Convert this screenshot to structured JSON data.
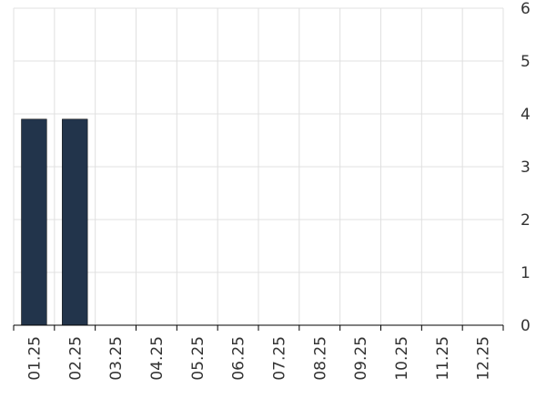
{
  "chart_data": {
    "type": "bar",
    "categories": [
      "01.25",
      "02.25",
      "03.25",
      "04.25",
      "05.25",
      "06.25",
      "07.25",
      "08.25",
      "09.25",
      "10.25",
      "11.25",
      "12.25"
    ],
    "values": [
      3.9,
      3.9,
      0,
      0,
      0,
      0,
      0,
      0,
      0,
      0,
      0,
      0
    ],
    "ylim": [
      0,
      6
    ],
    "yticks": [
      0,
      1,
      2,
      3,
      4,
      5,
      6
    ],
    "y_axis_side": "right",
    "grid": true,
    "bar_color": "#22344b",
    "title": "",
    "xlabel": "",
    "ylabel": ""
  }
}
